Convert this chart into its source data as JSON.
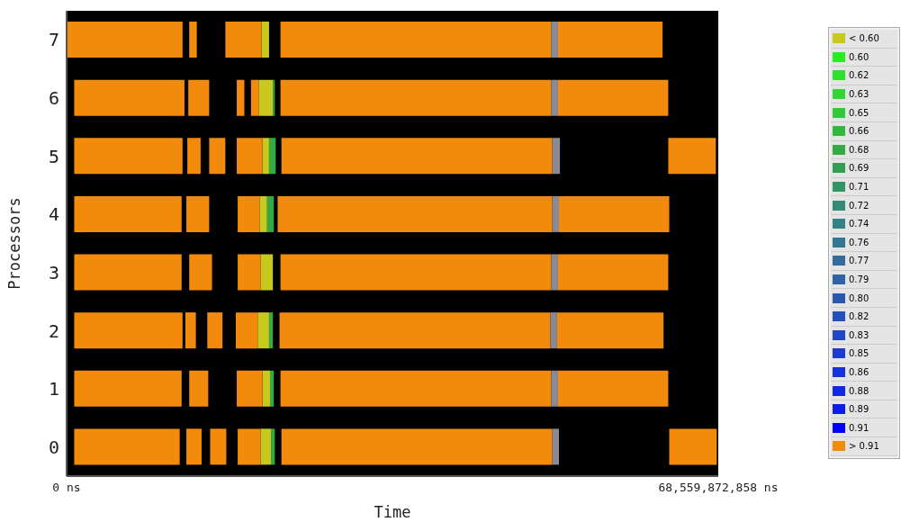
{
  "chart_data": {
    "type": "bar",
    "orientation": "horizontal",
    "xlabel": "Time",
    "ylabel": "Processors",
    "categories": [
      "7",
      "6",
      "5",
      "4",
      "3",
      "2",
      "1",
      "0"
    ],
    "xlim": [
      0,
      68559872858
    ],
    "xticks": [
      {
        "value": 0,
        "label": "0 ns"
      },
      {
        "value": 68559872858,
        "label": "68,559,872,858 ns"
      }
    ],
    "legend": "right",
    "series": [
      {
        "name": "< 0.60",
        "color": "#c8c81e",
        "base": [
          20500000000,
          20200000000,
          20600000000,
          20300000000,
          20400000000,
          20100000000,
          20600000000,
          20400000000
        ],
        "values": [
          800000000,
          1500000000,
          700000000,
          800000000,
          1300000000,
          1200000000,
          800000000,
          1100000000
        ]
      },
      {
        "name": "0.60",
        "color": "#22ee22",
        "values": [
          null,
          null,
          null,
          null,
          null,
          null,
          null,
          null
        ]
      },
      {
        "name": "0.62",
        "color": "#2ee02e",
        "values": [
          null,
          null,
          null,
          null,
          null,
          null,
          null,
          null
        ]
      },
      {
        "name": "0.63",
        "color": "#33d633",
        "values": [
          null,
          null,
          null,
          null,
          null,
          null,
          null,
          null
        ]
      },
      {
        "name": "0.65",
        "color": "#33c838",
        "values": [
          null,
          null,
          null,
          null,
          null,
          null,
          null,
          null
        ]
      },
      {
        "name": "0.66",
        "color": "#33b83e",
        "values": [
          null,
          null,
          null,
          null,
          null,
          null,
          null,
          null
        ]
      },
      {
        "name": "0.68",
        "color": "#33aa44",
        "base": [
          null,
          21700000000,
          21300000000,
          21100000000,
          null,
          21300000000,
          21400000000,
          21500000000
        ],
        "values": [
          null,
          200000000,
          700000000,
          700000000,
          null,
          400000000,
          400000000,
          400000000
        ]
      },
      {
        "name": "0.69",
        "color": "#339c55",
        "values": [
          null,
          null,
          null,
          null,
          null,
          null,
          null,
          null
        ]
      },
      {
        "name": "0.71",
        "color": "#339466",
        "values": [
          null,
          null,
          null,
          null,
          null,
          null,
          null,
          null
        ]
      },
      {
        "name": "0.72",
        "color": "#338a77",
        "values": [
          null,
          null,
          null,
          null,
          null,
          null,
          null,
          null
        ]
      },
      {
        "name": "0.74",
        "color": "#338288",
        "values": [
          null,
          null,
          null,
          null,
          null,
          null,
          null,
          null
        ]
      },
      {
        "name": "0.76",
        "color": "#337890",
        "values": [
          null,
          null,
          null,
          null,
          null,
          null,
          null,
          null
        ]
      },
      {
        "name": "0.77",
        "color": "#336c9a",
        "values": [
          null,
          null,
          null,
          null,
          null,
          null,
          null,
          null
        ]
      },
      {
        "name": "0.79",
        "color": "#3062a6",
        "values": [
          null,
          null,
          null,
          null,
          null,
          null,
          null,
          null
        ]
      },
      {
        "name": "0.80",
        "color": "#2a58b0",
        "values": [
          null,
          null,
          null,
          null,
          null,
          null,
          null,
          null
        ]
      },
      {
        "name": "0.82",
        "color": "#2450bc",
        "values": [
          null,
          null,
          null,
          null,
          null,
          null,
          null,
          null
        ]
      },
      {
        "name": "0.83",
        "color": "#2046c6",
        "values": [
          null,
          null,
          null,
          null,
          null,
          null,
          null,
          null
        ]
      },
      {
        "name": "0.85",
        "color": "#1c3cd0",
        "values": [
          null,
          null,
          null,
          null,
          null,
          null,
          null,
          null
        ]
      },
      {
        "name": "0.86",
        "color": "#1632da",
        "values": [
          null,
          null,
          null,
          null,
          null,
          null,
          null,
          null
        ]
      },
      {
        "name": "0.88",
        "color": "#1028e4",
        "values": [
          null,
          null,
          null,
          null,
          null,
          null,
          null,
          null
        ]
      },
      {
        "name": "0.89",
        "color": "#0a1cee",
        "values": [
          null,
          null,
          null,
          null,
          null,
          null,
          null,
          null
        ]
      },
      {
        "name": "0.91",
        "color": "#0000ff",
        "values": [
          null,
          null,
          null,
          null,
          null,
          null,
          null,
          null
        ]
      },
      {
        "name": "> 0.91",
        "color": "#f28a0c",
        "base": [
          22500000000,
          22500000000,
          22600000000,
          22200000000,
          22500000000,
          22400000000,
          22500000000,
          22600000000
        ],
        "values": [
          28500000000,
          28500000000,
          28500000000,
          28900000000,
          28500000000,
          28500000000,
          28500000000,
          28500000000
        ]
      },
      {
        "color": "#f28a0c",
        "base": [
          0,
          800000000,
          800000000,
          800000000,
          800000000,
          800000000,
          800000000,
          800000000
        ],
        "values": [
          12200000000,
          11600000000,
          11400000000,
          11300000000,
          11300000000,
          11400000000,
          11300000000,
          11100000000
        ]
      },
      {
        "color": "#f28a0c",
        "base": [
          12900000000,
          12800000000,
          12700000000,
          12600000000,
          12900000000,
          12500000000,
          12900000000,
          12600000000
        ],
        "values": [
          800000000,
          2200000000,
          1400000000,
          2400000000,
          2400000000,
          1100000000,
          2000000000,
          1600000000
        ]
      },
      {
        "color": "#f28a0c",
        "base": [
          null,
          17900000000,
          15000000000,
          null,
          null,
          14800000000,
          null,
          15100000000
        ],
        "values": [
          null,
          800000000,
          1700000000,
          null,
          null,
          1600000000,
          null,
          1700000000
        ]
      },
      {
        "color": "#f28a0c",
        "base": [
          16700000000,
          19400000000,
          17900000000,
          18000000000,
          18000000000,
          17800000000,
          17900000000,
          18000000000
        ],
        "values": [
          3800000000,
          800000000,
          2700000000,
          2300000000,
          2400000000,
          2300000000,
          2700000000,
          2400000000
        ]
      },
      {
        "color": "#8a8a96",
        "base": [
          51000000000,
          51000000000,
          51100000000,
          51100000000,
          51000000000,
          50900000000,
          51000000000,
          51100000000
        ],
        "values": [
          700000000,
          700000000,
          800000000,
          700000000,
          700000000,
          700000000,
          700000000,
          700000000
        ]
      },
      {
        "color": "#f28a0c",
        "base": [
          51700000000,
          51700000000,
          null,
          51800000000,
          51700000000,
          51600000000,
          51700000000,
          null
        ],
        "values": [
          11000000000,
          11600000000,
          null,
          11600000000,
          11600000000,
          11200000000,
          11600000000,
          null
        ]
      },
      {
        "color": "#f28a0c",
        "base": [
          null,
          null,
          63300000000,
          null,
          null,
          null,
          null,
          63400000000
        ],
        "values": [
          null,
          null,
          5000000000,
          null,
          null,
          null,
          null,
          5000000000
        ]
      }
    ]
  }
}
